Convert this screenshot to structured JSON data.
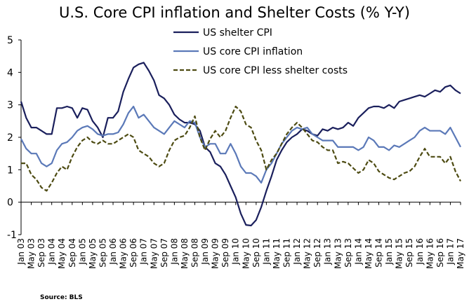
{
  "chart_data": {
    "type": "line",
    "title": "U.S. Core CPI inflation and Shelter Costs (% Y-Y)",
    "xlabel": "",
    "ylabel": "",
    "ylim": [
      -1,
      5
    ],
    "y_ticks": [
      -1,
      0,
      1,
      2,
      3,
      4,
      5
    ],
    "x_range": [
      "2003-01",
      "2017-05"
    ],
    "x_tick_labels": [
      "Jan 03",
      "May 03",
      "Sep 03",
      "Jan 04",
      "May 04",
      "Sep 04",
      "Jan 05",
      "May 05",
      "Sep 05",
      "Jan 06",
      "May 06",
      "Sep 06",
      "Jan 07",
      "May 07",
      "Sep 07",
      "Jan 08",
      "May 08",
      "Sep 08",
      "Jan 09",
      "May 09",
      "Sep 09",
      "Jan 10",
      "May 10",
      "Sep 10",
      "Jan 11",
      "May 11",
      "Sep 11",
      "Jan 12",
      "May 12",
      "Sep 12",
      "Jan 13",
      "May 13",
      "Sep 13",
      "Jan 14",
      "May 14",
      "Sep 14",
      "Jan 15",
      "May 15",
      "Sep 15",
      "Jan 16",
      "May 16",
      "Sep 16",
      "Jan 17",
      "May 17"
    ],
    "grid": false,
    "legend_position": "top-center",
    "series": [
      {
        "name": "US shelter CPI",
        "color": "#1a1f5c",
        "style": "solid",
        "points": [
          [
            "2003-01",
            3.1
          ],
          [
            "2003-03",
            2.6
          ],
          [
            "2003-05",
            2.3
          ],
          [
            "2003-07",
            2.3
          ],
          [
            "2003-09",
            2.2
          ],
          [
            "2003-11",
            2.1
          ],
          [
            "2004-01",
            2.1
          ],
          [
            "2004-03",
            2.9
          ],
          [
            "2004-05",
            2.9
          ],
          [
            "2004-07",
            2.95
          ],
          [
            "2004-09",
            2.9
          ],
          [
            "2004-11",
            2.6
          ],
          [
            "2005-01",
            2.9
          ],
          [
            "2005-03",
            2.85
          ],
          [
            "2005-05",
            2.5
          ],
          [
            "2005-07",
            2.3
          ],
          [
            "2005-09",
            2.0
          ],
          [
            "2005-11",
            2.6
          ],
          [
            "2006-01",
            2.6
          ],
          [
            "2006-03",
            2.8
          ],
          [
            "2006-05",
            3.4
          ],
          [
            "2006-07",
            3.8
          ],
          [
            "2006-09",
            4.15
          ],
          [
            "2006-11",
            4.25
          ],
          [
            "2007-01",
            4.3
          ],
          [
            "2007-03",
            4.05
          ],
          [
            "2007-05",
            3.75
          ],
          [
            "2007-07",
            3.3
          ],
          [
            "2007-09",
            3.2
          ],
          [
            "2007-11",
            3.0
          ],
          [
            "2008-01",
            2.7
          ],
          [
            "2008-03",
            2.55
          ],
          [
            "2008-05",
            2.45
          ],
          [
            "2008-07",
            2.45
          ],
          [
            "2008-09",
            2.4
          ],
          [
            "2008-11",
            2.2
          ],
          [
            "2009-01",
            1.7
          ],
          [
            "2009-03",
            1.55
          ],
          [
            "2009-05",
            1.2
          ],
          [
            "2009-07",
            1.1
          ],
          [
            "2009-09",
            0.85
          ],
          [
            "2009-11",
            0.5
          ],
          [
            "2010-01",
            0.15
          ],
          [
            "2010-03",
            -0.35
          ],
          [
            "2010-05",
            -0.7
          ],
          [
            "2010-07",
            -0.72
          ],
          [
            "2010-09",
            -0.55
          ],
          [
            "2010-11",
            -0.15
          ],
          [
            "2011-01",
            0.35
          ],
          [
            "2011-03",
            0.8
          ],
          [
            "2011-05",
            1.3
          ],
          [
            "2011-07",
            1.6
          ],
          [
            "2011-09",
            1.85
          ],
          [
            "2011-11",
            2.0
          ],
          [
            "2012-01",
            2.1
          ],
          [
            "2012-03",
            2.25
          ],
          [
            "2012-05",
            2.2
          ],
          [
            "2012-07",
            2.1
          ],
          [
            "2012-09",
            2.05
          ],
          [
            "2012-11",
            2.25
          ],
          [
            "2013-01",
            2.2
          ],
          [
            "2013-03",
            2.3
          ],
          [
            "2013-05",
            2.25
          ],
          [
            "2013-07",
            2.3
          ],
          [
            "2013-09",
            2.45
          ],
          [
            "2013-11",
            2.35
          ],
          [
            "2014-01",
            2.6
          ],
          [
            "2014-03",
            2.75
          ],
          [
            "2014-05",
            2.9
          ],
          [
            "2014-07",
            2.95
          ],
          [
            "2014-09",
            2.95
          ],
          [
            "2014-11",
            2.9
          ],
          [
            "2015-01",
            3.0
          ],
          [
            "2015-03",
            2.9
          ],
          [
            "2015-05",
            3.1
          ],
          [
            "2015-07",
            3.15
          ],
          [
            "2015-09",
            3.2
          ],
          [
            "2015-11",
            3.25
          ],
          [
            "2016-01",
            3.3
          ],
          [
            "2016-03",
            3.25
          ],
          [
            "2016-05",
            3.35
          ],
          [
            "2016-07",
            3.45
          ],
          [
            "2016-09",
            3.4
          ],
          [
            "2016-11",
            3.55
          ],
          [
            "2017-01",
            3.6
          ],
          [
            "2017-03",
            3.45
          ],
          [
            "2017-05",
            3.35
          ]
        ]
      },
      {
        "name": "US core CPI inflation",
        "color": "#5b79b8",
        "style": "solid",
        "points": [
          [
            "2003-01",
            1.95
          ],
          [
            "2003-03",
            1.65
          ],
          [
            "2003-05",
            1.5
          ],
          [
            "2003-07",
            1.5
          ],
          [
            "2003-09",
            1.2
          ],
          [
            "2003-11",
            1.1
          ],
          [
            "2004-01",
            1.2
          ],
          [
            "2004-03",
            1.6
          ],
          [
            "2004-05",
            1.8
          ],
          [
            "2004-07",
            1.85
          ],
          [
            "2004-09",
            2.0
          ],
          [
            "2004-11",
            2.2
          ],
          [
            "2005-01",
            2.3
          ],
          [
            "2005-03",
            2.35
          ],
          [
            "2005-05",
            2.25
          ],
          [
            "2005-07",
            2.1
          ],
          [
            "2005-09",
            2.05
          ],
          [
            "2005-11",
            2.1
          ],
          [
            "2006-01",
            2.1
          ],
          [
            "2006-03",
            2.15
          ],
          [
            "2006-05",
            2.4
          ],
          [
            "2006-07",
            2.75
          ],
          [
            "2006-09",
            2.95
          ],
          [
            "2006-11",
            2.6
          ],
          [
            "2007-01",
            2.7
          ],
          [
            "2007-03",
            2.5
          ],
          [
            "2007-05",
            2.3
          ],
          [
            "2007-07",
            2.2
          ],
          [
            "2007-09",
            2.1
          ],
          [
            "2007-11",
            2.3
          ],
          [
            "2008-01",
            2.5
          ],
          [
            "2008-03",
            2.4
          ],
          [
            "2008-05",
            2.3
          ],
          [
            "2008-07",
            2.5
          ],
          [
            "2008-09",
            2.45
          ],
          [
            "2008-11",
            2.0
          ],
          [
            "2009-01",
            1.7
          ],
          [
            "2009-03",
            1.8
          ],
          [
            "2009-05",
            1.8
          ],
          [
            "2009-07",
            1.5
          ],
          [
            "2009-09",
            1.5
          ],
          [
            "2009-11",
            1.8
          ],
          [
            "2010-01",
            1.5
          ],
          [
            "2010-03",
            1.1
          ],
          [
            "2010-05",
            0.9
          ],
          [
            "2010-07",
            0.9
          ],
          [
            "2010-09",
            0.8
          ],
          [
            "2010-11",
            0.6
          ],
          [
            "2011-01",
            1.0
          ],
          [
            "2011-03",
            1.2
          ],
          [
            "2011-05",
            1.5
          ],
          [
            "2011-07",
            1.8
          ],
          [
            "2011-09",
            2.0
          ],
          [
            "2011-11",
            2.2
          ],
          [
            "2012-01",
            2.3
          ],
          [
            "2012-03",
            2.25
          ],
          [
            "2012-05",
            2.3
          ],
          [
            "2012-07",
            2.1
          ],
          [
            "2012-09",
            2.0
          ],
          [
            "2012-11",
            1.9
          ],
          [
            "2013-01",
            1.9
          ],
          [
            "2013-03",
            1.9
          ],
          [
            "2013-05",
            1.7
          ],
          [
            "2013-07",
            1.7
          ],
          [
            "2013-09",
            1.7
          ],
          [
            "2013-11",
            1.7
          ],
          [
            "2014-01",
            1.6
          ],
          [
            "2014-03",
            1.7
          ],
          [
            "2014-05",
            2.0
          ],
          [
            "2014-07",
            1.9
          ],
          [
            "2014-09",
            1.7
          ],
          [
            "2014-11",
            1.7
          ],
          [
            "2015-01",
            1.6
          ],
          [
            "2015-03",
            1.75
          ],
          [
            "2015-05",
            1.7
          ],
          [
            "2015-07",
            1.8
          ],
          [
            "2015-09",
            1.9
          ],
          [
            "2015-11",
            2.0
          ],
          [
            "2016-01",
            2.2
          ],
          [
            "2016-03",
            2.3
          ],
          [
            "2016-05",
            2.2
          ],
          [
            "2016-07",
            2.2
          ],
          [
            "2016-09",
            2.2
          ],
          [
            "2016-11",
            2.1
          ],
          [
            "2017-01",
            2.3
          ],
          [
            "2017-03",
            2.0
          ],
          [
            "2017-05",
            1.7
          ]
        ]
      },
      {
        "name": "US core CPI less shelter costs",
        "color": "#4d4b12",
        "style": "dashed",
        "points": [
          [
            "2003-01",
            1.2
          ],
          [
            "2003-03",
            1.2
          ],
          [
            "2003-05",
            0.85
          ],
          [
            "2003-07",
            0.7
          ],
          [
            "2003-09",
            0.45
          ],
          [
            "2003-11",
            0.35
          ],
          [
            "2004-01",
            0.6
          ],
          [
            "2004-03",
            0.9
          ],
          [
            "2004-05",
            1.1
          ],
          [
            "2004-07",
            1.0
          ],
          [
            "2004-09",
            1.4
          ],
          [
            "2004-11",
            1.7
          ],
          [
            "2005-01",
            1.9
          ],
          [
            "2005-03",
            2.0
          ],
          [
            "2005-05",
            1.85
          ],
          [
            "2005-07",
            1.8
          ],
          [
            "2005-09",
            1.9
          ],
          [
            "2005-11",
            1.8
          ],
          [
            "2006-01",
            1.8
          ],
          [
            "2006-03",
            1.9
          ],
          [
            "2006-05",
            2.0
          ],
          [
            "2006-07",
            2.1
          ],
          [
            "2006-09",
            2.0
          ],
          [
            "2006-11",
            1.6
          ],
          [
            "2007-01",
            1.5
          ],
          [
            "2007-03",
            1.4
          ],
          [
            "2007-05",
            1.2
          ],
          [
            "2007-07",
            1.1
          ],
          [
            "2007-09",
            1.2
          ],
          [
            "2007-11",
            1.6
          ],
          [
            "2008-01",
            1.9
          ],
          [
            "2008-03",
            2.0
          ],
          [
            "2008-05",
            2.05
          ],
          [
            "2008-07",
            2.3
          ],
          [
            "2008-09",
            2.65
          ],
          [
            "2008-11",
            2.0
          ],
          [
            "2009-01",
            1.6
          ],
          [
            "2009-03",
            1.95
          ],
          [
            "2009-05",
            2.2
          ],
          [
            "2009-07",
            2.0
          ],
          [
            "2009-09",
            2.2
          ],
          [
            "2009-11",
            2.6
          ],
          [
            "2010-01",
            2.95
          ],
          [
            "2010-03",
            2.8
          ],
          [
            "2010-05",
            2.4
          ],
          [
            "2010-07",
            2.3
          ],
          [
            "2010-09",
            1.9
          ],
          [
            "2010-11",
            1.6
          ],
          [
            "2011-01",
            1.0
          ],
          [
            "2011-03",
            1.3
          ],
          [
            "2011-05",
            1.5
          ],
          [
            "2011-07",
            1.8
          ],
          [
            "2011-09",
            2.1
          ],
          [
            "2011-11",
            2.3
          ],
          [
            "2012-01",
            2.45
          ],
          [
            "2012-03",
            2.3
          ],
          [
            "2012-05",
            2.1
          ],
          [
            "2012-07",
            1.9
          ],
          [
            "2012-09",
            1.85
          ],
          [
            "2012-11",
            1.7
          ],
          [
            "2013-01",
            1.6
          ],
          [
            "2013-03",
            1.6
          ],
          [
            "2013-05",
            1.2
          ],
          [
            "2013-07",
            1.25
          ],
          [
            "2013-09",
            1.2
          ],
          [
            "2013-11",
            1.05
          ],
          [
            "2014-01",
            0.9
          ],
          [
            "2014-03",
            1.0
          ],
          [
            "2014-05",
            1.3
          ],
          [
            "2014-07",
            1.2
          ],
          [
            "2014-09",
            0.95
          ],
          [
            "2014-11",
            0.85
          ],
          [
            "2015-01",
            0.75
          ],
          [
            "2015-03",
            0.7
          ],
          [
            "2015-05",
            0.8
          ],
          [
            "2015-07",
            0.9
          ],
          [
            "2015-09",
            0.95
          ],
          [
            "2015-11",
            1.1
          ],
          [
            "2016-01",
            1.4
          ],
          [
            "2016-03",
            1.65
          ],
          [
            "2016-05",
            1.4
          ],
          [
            "2016-07",
            1.4
          ],
          [
            "2016-09",
            1.4
          ],
          [
            "2016-11",
            1.2
          ],
          [
            "2017-01",
            1.4
          ],
          [
            "2017-03",
            0.95
          ],
          [
            "2017-05",
            0.65
          ]
        ]
      }
    ]
  },
  "source_label": "Source: BLS"
}
